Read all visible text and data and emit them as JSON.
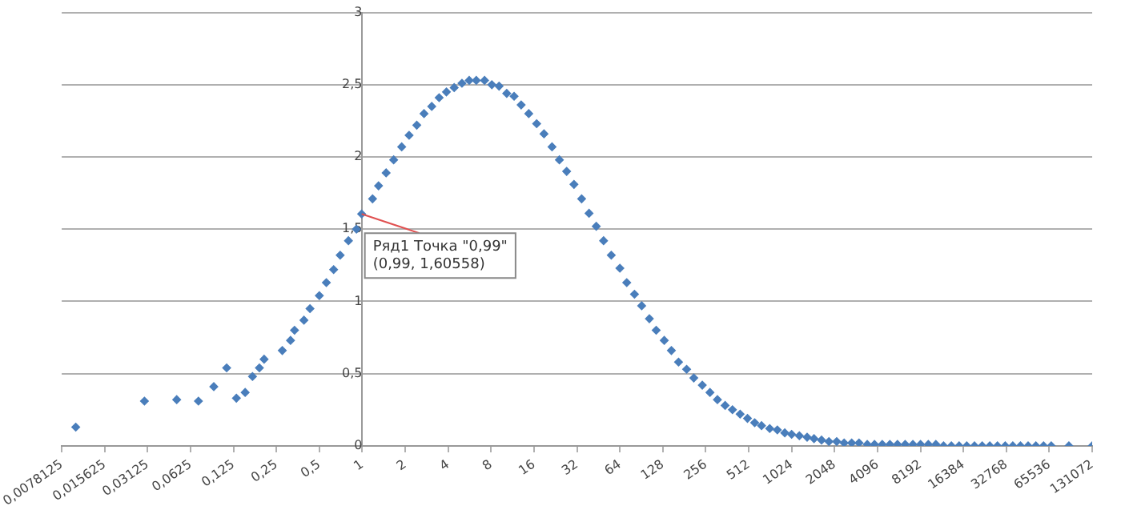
{
  "chart_data": {
    "type": "scatter",
    "log": "x",
    "grid": "y",
    "legend": false,
    "marker": "diamond",
    "xlim": [
      0.0078125,
      131072
    ],
    "ylim": [
      0,
      3
    ],
    "xticks": [
      {
        "value": 0.0078125,
        "label": "0,0078125"
      },
      {
        "value": 0.015625,
        "label": "0,015625"
      },
      {
        "value": 0.03125,
        "label": "0,03125"
      },
      {
        "value": 0.0625,
        "label": "0,0625"
      },
      {
        "value": 0.125,
        "label": "0,125"
      },
      {
        "value": 0.25,
        "label": "0,25"
      },
      {
        "value": 0.5,
        "label": "0,5"
      },
      1,
      2,
      4,
      8,
      16,
      32,
      64,
      128,
      256,
      512,
      1024,
      2048,
      4096,
      8192,
      16384,
      32768,
      65536,
      131072
    ],
    "yticks": [
      0,
      {
        "value": 0.5,
        "label": "0,5"
      },
      1,
      {
        "value": 1.5,
        "label": "1,5"
      },
      2,
      {
        "value": 2.5,
        "label": "2,5"
      },
      3
    ],
    "annotations": [
      {
        "text": "Ряд1 Точка \"0,99\"\n(0,99, 1,60558)",
        "x": 0.99,
        "y": 1.60558
      }
    ],
    "series": [
      {
        "color": "#4a7ebb",
        "x": [
          0.0098,
          0.0297,
          0.05,
          0.071,
          0.091,
          0.112,
          0.131,
          0.151,
          0.17,
          0.19,
          0.205,
          0.275,
          0.314,
          0.335,
          0.39,
          0.43,
          0.5,
          0.56,
          0.63,
          0.7,
          0.8,
          0.91,
          0.99,
          1.18,
          1.3,
          1.47,
          1.66,
          1.89,
          2.13,
          2.41,
          2.71,
          3.07,
          3.46,
          3.89,
          4.41,
          5.0,
          5.62,
          6.3,
          7.2,
          8.1,
          9.1,
          10.3,
          11.6,
          13.0,
          14.7,
          16.7,
          18.8,
          21.4,
          24.1,
          27.1,
          30.5,
          34.5,
          38.9,
          43.7,
          49.2,
          55.7,
          64,
          71.5,
          81,
          91,
          103,
          115,
          131,
          147,
          165,
          188,
          211,
          242,
          274,
          309,
          350,
          394,
          446,
          502,
          564,
          630,
          719,
          813,
          917,
          1024,
          1160,
          1315,
          1470,
          1660,
          1870,
          2120,
          2390,
          2700,
          3040,
          3470,
          3900,
          4420,
          5000,
          5650,
          6400,
          7250,
          8200,
          9300,
          10500,
          11900,
          13500,
          15300,
          17300,
          19600,
          22200,
          25100,
          28400,
          32200,
          36400,
          41200,
          46600,
          52800,
          59800,
          67700,
          90000,
          131072
        ],
        "values": [
          0.13,
          0.31,
          0.32,
          0.31,
          0.41,
          0.54,
          0.33,
          0.37,
          0.48,
          0.54,
          0.6,
          0.66,
          0.73,
          0.8,
          0.87,
          0.95,
          1.04,
          1.13,
          1.22,
          1.32,
          1.42,
          1.5,
          1.60558,
          1.71,
          1.8,
          1.89,
          1.98,
          2.07,
          2.15,
          2.22,
          2.3,
          2.35,
          2.41,
          2.45,
          2.48,
          2.51,
          2.53,
          2.53,
          2.53,
          2.5,
          2.49,
          2.44,
          2.42,
          2.36,
          2.3,
          2.23,
          2.16,
          2.07,
          1.98,
          1.9,
          1.81,
          1.71,
          1.61,
          1.52,
          1.42,
          1.32,
          1.23,
          1.13,
          1.05,
          0.97,
          0.88,
          0.8,
          0.73,
          0.66,
          0.58,
          0.53,
          0.47,
          0.42,
          0.37,
          0.32,
          0.28,
          0.25,
          0.22,
          0.19,
          0.16,
          0.14,
          0.12,
          0.11,
          0.09,
          0.08,
          0.07,
          0.06,
          0.05,
          0.04,
          0.03,
          0.03,
          0.02,
          0.02,
          0.02,
          0.01,
          0.01,
          0.01,
          0.01,
          0.01,
          0.01,
          0.01,
          0.01,
          0.01,
          0.01,
          0,
          0,
          0,
          0,
          0,
          0,
          0,
          0,
          0,
          0,
          0,
          0,
          0,
          0,
          0,
          0,
          0
        ]
      }
    ]
  }
}
